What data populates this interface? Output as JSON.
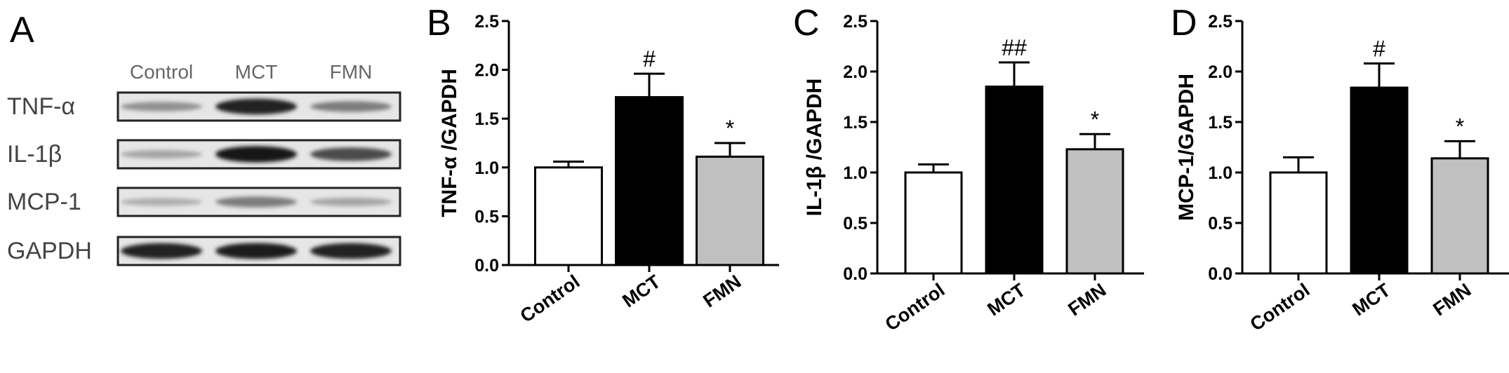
{
  "western_blot": {
    "letter": "A",
    "lanes": [
      "Control",
      "MCT",
      "FMN"
    ],
    "proteins": [
      {
        "name": "TNF-α",
        "intensity": [
          0.35,
          0.9,
          0.45
        ]
      },
      {
        "name": "IL-1β",
        "intensity": [
          0.25,
          0.95,
          0.7
        ]
      },
      {
        "name": "MCP-1",
        "intensity": [
          0.2,
          0.45,
          0.25
        ]
      },
      {
        "name": "GAPDH",
        "intensity": [
          0.9,
          0.92,
          0.9
        ]
      }
    ]
  },
  "chart_data": [
    {
      "letter": "B",
      "type": "bar",
      "categories": [
        "Control",
        "MCT",
        "FMN"
      ],
      "values": [
        1.0,
        1.72,
        1.11
      ],
      "errors": [
        0.06,
        0.24,
        0.14
      ],
      "significance": [
        "",
        "#",
        "*"
      ],
      "colors": [
        "#ffffff",
        "#000000",
        "#c0c0c0"
      ],
      "ylabel": "TNF-α /GAPDH",
      "ylim": [
        0,
        2.5
      ],
      "yticks": [
        "0.0",
        "0.5",
        "1.0",
        "1.5",
        "2.0",
        "2.5"
      ]
    },
    {
      "letter": "C",
      "type": "bar",
      "categories": [
        "Control",
        "MCT",
        "FMN"
      ],
      "values": [
        1.0,
        1.85,
        1.23
      ],
      "errors": [
        0.08,
        0.24,
        0.15
      ],
      "significance": [
        "",
        "##",
        "*"
      ],
      "colors": [
        "#ffffff",
        "#000000",
        "#c0c0c0"
      ],
      "ylabel": "IL-1β /GAPDH",
      "ylim": [
        0,
        2.5
      ],
      "yticks": [
        "0.0",
        "0.5",
        "1.0",
        "1.5",
        "2.0",
        "2.5"
      ]
    },
    {
      "letter": "D",
      "type": "bar",
      "categories": [
        "Control",
        "MCT",
        "FMN"
      ],
      "values": [
        1.0,
        1.84,
        1.14
      ],
      "errors": [
        0.15,
        0.24,
        0.17
      ],
      "significance": [
        "",
        "#",
        "*"
      ],
      "colors": [
        "#ffffff",
        "#000000",
        "#c0c0c0"
      ],
      "ylabel": "MCP-1/GAPDH",
      "ylim": [
        0,
        2.5
      ],
      "yticks": [
        "0.0",
        "0.5",
        "1.0",
        "1.5",
        "2.0",
        "2.5"
      ]
    }
  ]
}
